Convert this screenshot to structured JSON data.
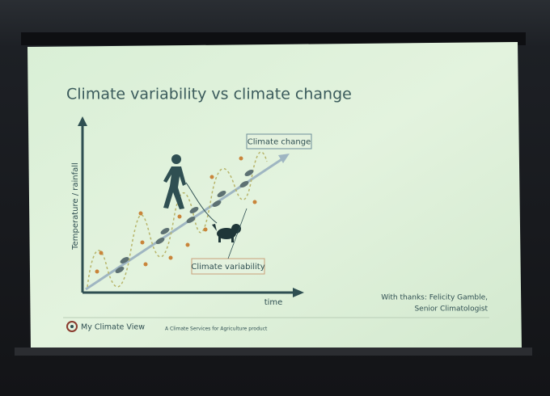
{
  "slide": {
    "title": "Climate variability vs climate change",
    "diagram": {
      "y_axis_label": "Temperature / rainfall",
      "x_axis_label": "time",
      "trend_label": "Climate change",
      "variability_label": "Climate variability"
    },
    "credit": [
      "With thanks: Felicity Gamble,",
      "Senior Climatologist"
    ],
    "footer": {
      "brand": "My Climate View",
      "tagline": "A Climate Services for Agriculture product"
    }
  }
}
